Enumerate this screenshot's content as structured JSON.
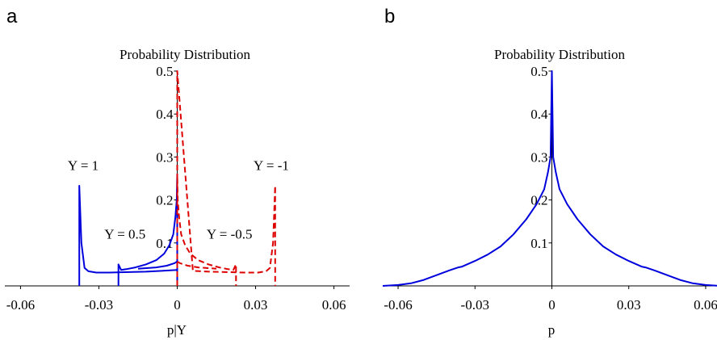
{
  "chart_data": [
    {
      "panel": "a",
      "type": "line",
      "title": "Probability Distribution",
      "xlabel": "p|Y",
      "ylabel": "",
      "xlim": [
        -0.066,
        0.066
      ],
      "ylim": [
        0,
        0.5
      ],
      "x_ticks": [
        -0.06,
        -0.03,
        0,
        0.03,
        0.06
      ],
      "x_tick_labels": [
        "-0.06",
        "-0.03",
        "0",
        "0.03",
        "0.06"
      ],
      "y_ticks": [
        0.1,
        0.2,
        0.3,
        0.4,
        0.5
      ],
      "y_tick_labels": [
        "0.1",
        "0.2",
        "0.3",
        "0.4",
        "0.5"
      ],
      "grid": false,
      "annotations": [
        {
          "text": "Y = 1",
          "x": -0.036,
          "y": 0.27
        },
        {
          "text": "Y = 0.5",
          "x": -0.02,
          "y": 0.11
        },
        {
          "text": "Y = -0.5",
          "x": 0.02,
          "y": 0.11
        },
        {
          "text": "Y = -1",
          "x": 0.036,
          "y": 0.27
        }
      ],
      "series": [
        {
          "color": "#0000dd",
          "style": "solid",
          "x": [
            -0.0375,
            -0.0375,
            -0.0367,
            -0.0355,
            -0.034,
            -0.031,
            -0.026,
            -0.02,
            -0.012,
            -0.006,
            0,
            0
          ],
          "y": [
            0,
            0.233,
            0.1,
            0.042,
            0.034,
            0.031,
            0.031,
            0.032,
            0.033,
            0.035,
            0.037,
            0
          ]
        },
        {
          "color": "#0000dd",
          "style": "solid",
          "x": [
            -0.0225,
            -0.0225,
            -0.0215,
            -0.0195,
            -0.016,
            -0.012,
            -0.008,
            -0.005,
            -0.003,
            -0.0015,
            -0.0007,
            -0.0002,
            0,
            0
          ],
          "y": [
            0,
            0.05,
            0.037,
            0.039,
            0.043,
            0.05,
            0.06,
            0.075,
            0.095,
            0.12,
            0.16,
            0.2,
            0.26,
            0
          ]
        },
        {
          "color": "#0000dd",
          "style": "solid",
          "x": [
            -0.015,
            -0.008,
            -0.004,
            -0.001,
            0
          ],
          "y": [
            0.04,
            0.043,
            0.047,
            0.053,
            0.057
          ]
        },
        {
          "color": "#dd0000",
          "style": "dashed",
          "x": [
            0,
            0,
            0.0002,
            0.0007,
            0.0015,
            0.003,
            0.005,
            0.008,
            0.012,
            0.016,
            0.0195,
            0.0215,
            0.0225,
            0.0225
          ],
          "y": [
            0,
            0.26,
            0.2,
            0.16,
            0.12,
            0.095,
            0.075,
            0.06,
            0.05,
            0.043,
            0.039,
            0.037,
            0.05,
            0
          ]
        },
        {
          "color": "#dd0000",
          "style": "dashed",
          "x": [
            0,
            0,
            0.006,
            0.012,
            0.02,
            0.026,
            0.031,
            0.034,
            0.0355,
            0.0367,
            0.0375,
            0.0375
          ],
          "y": [
            0,
            0.5,
            0.035,
            0.033,
            0.032,
            0.031,
            0.031,
            0.034,
            0.042,
            0.1,
            0.233,
            0
          ]
        },
        {
          "color": "#dd0000",
          "style": "dashed",
          "x": [
            0,
            0.001,
            0.004,
            0.008,
            0.015
          ],
          "y": [
            0.057,
            0.053,
            0.047,
            0.043,
            0.04
          ]
        }
      ]
    },
    {
      "panel": "b",
      "type": "line",
      "title": "Probability Distribution",
      "xlabel": "p",
      "ylabel": "",
      "xlim": [
        -0.066,
        0.066
      ],
      "ylim": [
        0,
        0.5
      ],
      "x_ticks": [
        -0.06,
        -0.03,
        0,
        0.03,
        0.06
      ],
      "x_tick_labels": [
        "-0.06",
        "-0.03",
        "0",
        "0.03",
        "0.06"
      ],
      "y_ticks": [
        0.1,
        0.2,
        0.3,
        0.4,
        0.5
      ],
      "y_tick_labels": [
        "0.1",
        "0.2",
        "0.3",
        "0.4",
        "0.5"
      ],
      "grid": false,
      "series": [
        {
          "color": "#0000dd",
          "style": "solid",
          "x": [
            -0.066,
            -0.06,
            -0.055,
            -0.05,
            -0.045,
            -0.04,
            -0.0365,
            -0.035,
            -0.03,
            -0.025,
            -0.02,
            -0.015,
            -0.01,
            -0.006,
            -0.003,
            -0.0015,
            -0.0005,
            0,
            0.0005,
            0.0015,
            0.003,
            0.006,
            0.01,
            0.015,
            0.02,
            0.025,
            0.03,
            0.035,
            0.0365,
            0.04,
            0.045,
            0.05,
            0.055,
            0.06,
            0.066
          ],
          "y": [
            0,
            0.002,
            0.006,
            0.014,
            0.025,
            0.036,
            0.043,
            0.045,
            0.058,
            0.073,
            0.092,
            0.12,
            0.155,
            0.19,
            0.225,
            0.265,
            0.3,
            0.5,
            0.3,
            0.265,
            0.225,
            0.19,
            0.155,
            0.12,
            0.092,
            0.073,
            0.058,
            0.045,
            0.043,
            0.036,
            0.025,
            0.014,
            0.006,
            0.002,
            0
          ]
        }
      ]
    }
  ]
}
